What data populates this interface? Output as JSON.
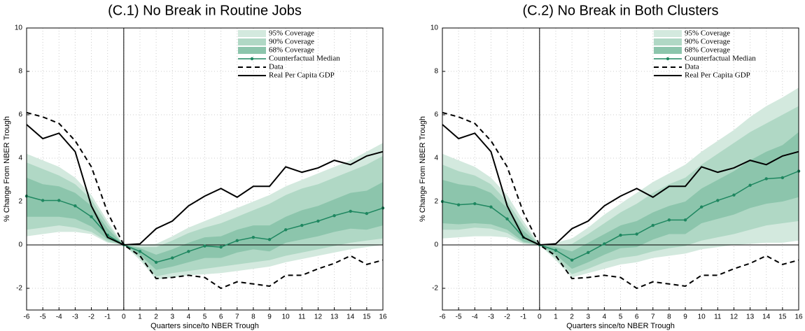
{
  "chart_data": [
    {
      "type": "line",
      "title": "(C.1) No Break in Routine Jobs",
      "xlabel": "Quarters since/to NBER Trough",
      "ylabel": "% Change From NBER Trough",
      "x": [
        -6,
        -5,
        -4,
        -3,
        -2,
        -1,
        0,
        1,
        2,
        3,
        4,
        5,
        6,
        7,
        8,
        9,
        10,
        11,
        12,
        13,
        14,
        15,
        16
      ],
      "xlim": [
        -6,
        16
      ],
      "ylim": [
        -3,
        10
      ],
      "xticks": [
        -6,
        -5,
        -4,
        -3,
        -2,
        -1,
        0,
        1,
        2,
        3,
        4,
        5,
        6,
        7,
        8,
        9,
        10,
        11,
        12,
        13,
        14,
        15,
        16
      ],
      "yticks": [
        -2,
        0,
        2,
        4,
        6,
        8,
        10
      ],
      "grid": true,
      "bands": [
        {
          "name": "95% Coverage",
          "color": "#d3e9de",
          "upper": [
            4.2,
            3.9,
            3.6,
            3.1,
            2.3,
            1.1,
            0,
            0.0,
            0.05,
            0.4,
            0.8,
            1.1,
            1.4,
            1.7,
            2.0,
            2.3,
            2.7,
            3.0,
            3.3,
            3.6,
            3.9,
            4.3,
            4.7
          ],
          "lower": [
            0.4,
            0.5,
            0.6,
            0.6,
            0.5,
            0.1,
            0,
            -0.7,
            -1.6,
            -1.5,
            -1.4,
            -1.35,
            -1.3,
            -1.2,
            -1.1,
            -1.0,
            -0.8,
            -0.65,
            -0.5,
            -0.35,
            -0.2,
            -0.1,
            0.0
          ]
        },
        {
          "name": "90% Coverage",
          "color": "#b0d8c5",
          "upper": [
            3.8,
            3.5,
            3.2,
            2.8,
            2.1,
            0.95,
            0,
            -0.1,
            -0.1,
            0.2,
            0.55,
            0.8,
            1.0,
            1.3,
            1.6,
            1.9,
            2.3,
            2.6,
            2.8,
            3.1,
            3.4,
            3.7,
            4.1
          ],
          "lower": [
            0.7,
            0.8,
            0.9,
            0.8,
            0.6,
            0.15,
            0,
            -0.6,
            -1.45,
            -1.3,
            -1.2,
            -1.1,
            -1.0,
            -0.9,
            -0.8,
            -0.7,
            -0.5,
            -0.35,
            -0.2,
            -0.05,
            0.1,
            0.2,
            0.3
          ]
        },
        {
          "name": "68% Coverage",
          "color": "#8cc5ac",
          "upper": [
            3.1,
            2.8,
            2.7,
            2.4,
            1.8,
            0.75,
            0,
            -0.15,
            -0.45,
            -0.2,
            0.1,
            0.35,
            0.4,
            0.7,
            0.9,
            0.9,
            1.3,
            1.6,
            1.8,
            2.1,
            2.4,
            2.5,
            2.9
          ],
          "lower": [
            1.3,
            1.3,
            1.3,
            1.2,
            0.85,
            0.25,
            0,
            -0.45,
            -1.15,
            -1.0,
            -0.8,
            -0.6,
            -0.6,
            -0.35,
            -0.2,
            -0.3,
            0.1,
            0.25,
            0.4,
            0.6,
            0.75,
            0.7,
            0.9
          ]
        }
      ],
      "series": [
        {
          "name": "Counterfactual Median",
          "color": "#1e8760",
          "style": "solid",
          "marker": true,
          "values": [
            2.25,
            2.05,
            2.05,
            1.8,
            1.3,
            0.45,
            0,
            -0.3,
            -0.8,
            -0.6,
            -0.3,
            -0.05,
            -0.1,
            0.2,
            0.35,
            0.25,
            0.7,
            0.9,
            1.1,
            1.35,
            1.55,
            1.45,
            1.7
          ]
        },
        {
          "name": "Data",
          "color": "#000000",
          "style": "dash",
          "marker": false,
          "values": [
            6.1,
            5.9,
            5.6,
            4.8,
            3.6,
            1.5,
            0,
            -0.5,
            -1.55,
            -1.5,
            -1.4,
            -1.5,
            -2.0,
            -1.7,
            -1.8,
            -1.9,
            -1.4,
            -1.4,
            -1.1,
            -0.85,
            -0.5,
            -0.9,
            -0.7
          ]
        },
        {
          "name": "Real Per Capita GDP",
          "color": "#000000",
          "style": "solid",
          "marker": false,
          "values": [
            5.55,
            4.9,
            5.15,
            4.3,
            1.8,
            0.35,
            0,
            0.05,
            0.75,
            1.1,
            1.8,
            2.25,
            2.6,
            2.2,
            2.7,
            2.7,
            3.6,
            3.35,
            3.55,
            3.9,
            3.7,
            4.1,
            4.3
          ]
        }
      ]
    },
    {
      "type": "line",
      "title": "(C.2) No Break in Both Clusters",
      "xlabel": "Quarters since/to NBER Trough",
      "ylabel": "% Change From NBER Trough",
      "x": [
        -6,
        -5,
        -4,
        -3,
        -2,
        -1,
        0,
        1,
        2,
        3,
        4,
        5,
        6,
        7,
        8,
        9,
        10,
        11,
        12,
        13,
        14,
        15,
        16
      ],
      "xlim": [
        -6,
        16
      ],
      "ylim": [
        -3,
        10
      ],
      "xticks": [
        -6,
        -5,
        -4,
        -3,
        -2,
        -1,
        0,
        1,
        2,
        3,
        4,
        5,
        6,
        7,
        8,
        9,
        10,
        11,
        12,
        13,
        14,
        15,
        16
      ],
      "yticks": [
        -2,
        0,
        2,
        4,
        6,
        8,
        10
      ],
      "grid": true,
      "bands": [
        {
          "name": "95% Coverage",
          "color": "#d3e9de",
          "upper": [
            4.2,
            3.9,
            3.6,
            3.1,
            2.3,
            1.1,
            0,
            0.1,
            0.3,
            0.8,
            1.4,
            1.9,
            2.4,
            2.9,
            3.3,
            3.7,
            4.3,
            4.8,
            5.3,
            5.9,
            6.4,
            6.8,
            7.25
          ],
          "lower": [
            0.3,
            0.35,
            0.4,
            0.4,
            0.35,
            0.05,
            0,
            -0.7,
            -1.5,
            -1.3,
            -1.1,
            -0.9,
            -0.8,
            -0.6,
            -0.5,
            -0.4,
            -0.2,
            -0.1,
            0.0,
            0.05,
            0.1,
            0.1,
            0.2
          ]
        },
        {
          "name": "90% Coverage",
          "color": "#b0d8c5",
          "upper": [
            3.7,
            3.4,
            3.2,
            2.8,
            2.0,
            0.9,
            0,
            -0.05,
            0.05,
            0.5,
            1.0,
            1.5,
            1.9,
            2.4,
            2.8,
            3.1,
            3.7,
            4.2,
            4.7,
            5.2,
            5.6,
            6.0,
            6.4
          ],
          "lower": [
            0.7,
            0.7,
            0.8,
            0.75,
            0.55,
            0.1,
            0,
            -0.6,
            -1.35,
            -1.1,
            -0.8,
            -0.6,
            -0.5,
            -0.3,
            -0.15,
            -0.05,
            0.2,
            0.35,
            0.5,
            0.7,
            0.9,
            1.0,
            1.1
          ]
        },
        {
          "name": "68% Coverage",
          "color": "#8cc5ac",
          "upper": [
            3.0,
            2.8,
            2.7,
            2.4,
            1.7,
            0.65,
            0,
            -0.1,
            -0.3,
            0.1,
            0.5,
            0.9,
            1.1,
            1.5,
            1.8,
            2.0,
            2.6,
            3.0,
            3.4,
            3.9,
            4.3,
            4.6,
            5.2
          ],
          "lower": [
            1.0,
            0.95,
            1.0,
            0.95,
            0.7,
            0.15,
            0,
            -0.45,
            -1.1,
            -0.8,
            -0.45,
            -0.15,
            -0.1,
            0.25,
            0.5,
            0.5,
            1.0,
            1.2,
            1.4,
            1.7,
            1.9,
            2.0,
            2.2
          ]
        }
      ],
      "series": [
        {
          "name": "Counterfactual Median",
          "color": "#1e8760",
          "style": "solid",
          "marker": true,
          "values": [
            2.0,
            1.85,
            1.9,
            1.75,
            1.2,
            0.35,
            0,
            -0.25,
            -0.7,
            -0.35,
            0.05,
            0.45,
            0.5,
            0.9,
            1.15,
            1.15,
            1.75,
            2.05,
            2.3,
            2.75,
            3.05,
            3.1,
            3.4
          ]
        },
        {
          "name": "Data",
          "color": "#000000",
          "style": "dash",
          "marker": false,
          "values": [
            6.1,
            5.9,
            5.6,
            4.8,
            3.6,
            1.5,
            0,
            -0.5,
            -1.55,
            -1.5,
            -1.4,
            -1.5,
            -2.0,
            -1.7,
            -1.8,
            -1.9,
            -1.4,
            -1.4,
            -1.1,
            -0.85,
            -0.5,
            -0.9,
            -0.7
          ]
        },
        {
          "name": "Real Per Capita GDP",
          "color": "#000000",
          "style": "solid",
          "marker": false,
          "values": [
            5.55,
            4.9,
            5.15,
            4.3,
            1.8,
            0.35,
            0,
            0.05,
            0.75,
            1.1,
            1.8,
            2.25,
            2.6,
            2.2,
            2.7,
            2.7,
            3.6,
            3.35,
            3.55,
            3.9,
            3.7,
            4.1,
            4.3
          ]
        }
      ]
    }
  ]
}
